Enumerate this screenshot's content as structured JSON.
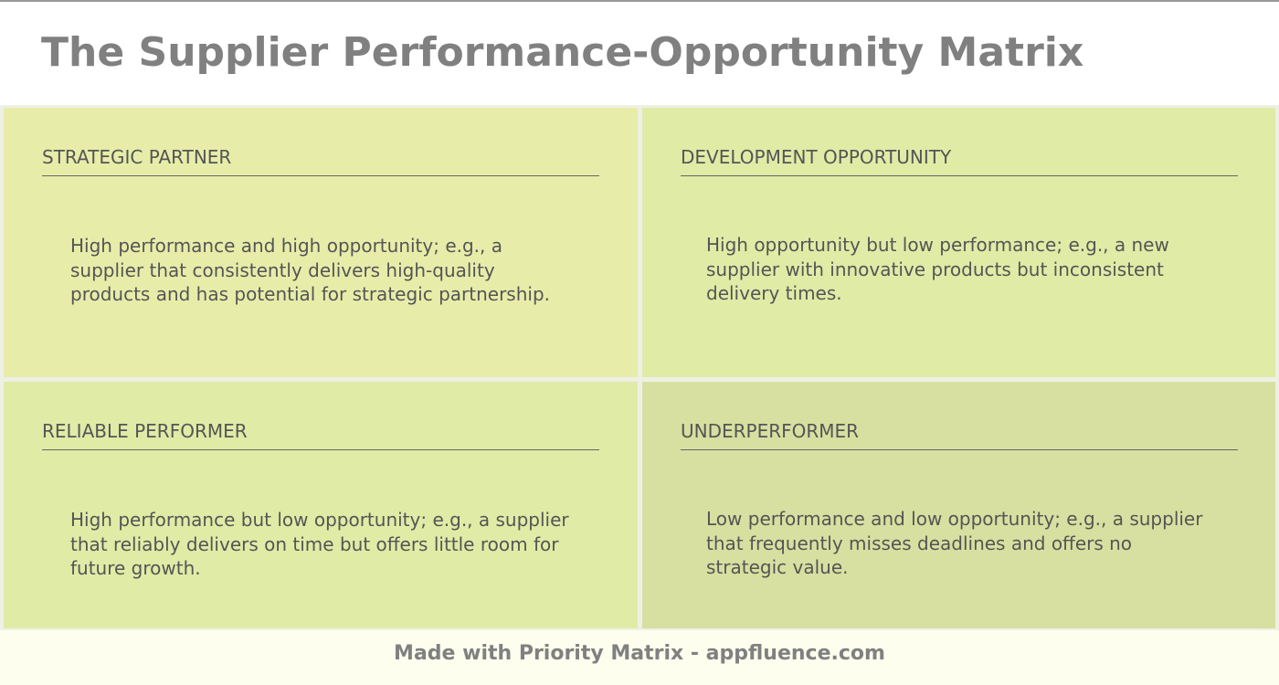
{
  "header": {
    "title": "The Supplier Performance-Opportunity Matrix"
  },
  "quadrants": [
    {
      "title": "STRATEGIC PARTNER",
      "text": "High performance and high opportunity; e.g., a supplier that consistently delivers high-quality products and has potential for strategic partnership."
    },
    {
      "title": "DEVELOPMENT OPPORTUNITY",
      "text": "High opportunity but low performance; e.g., a new supplier with innovative products but inconsistent delivery times."
    },
    {
      "title": "RELIABLE PERFORMER",
      "text": "High performance but low opportunity; e.g., a supplier that reliably delivers on time but offers little room for future growth."
    },
    {
      "title": "UNDERPERFORMER",
      "text": "Low performance and low opportunity; e.g., a supplier that frequently misses deadlines and offers no strategic value."
    }
  ],
  "footer": "Made with Priority Matrix - appfluence.com"
}
